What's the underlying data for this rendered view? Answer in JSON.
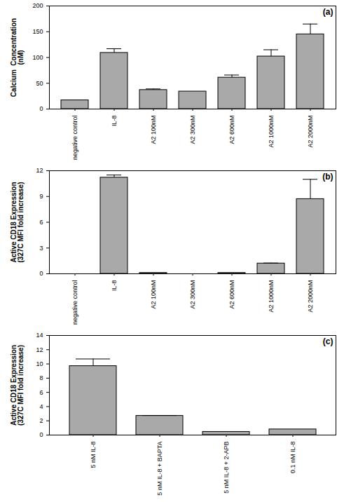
{
  "chart_data": [
    {
      "type": "bar",
      "title": "(a)",
      "y_label": "Calcium  Concentration\n(nM)",
      "categories": [
        "negative control",
        "IL-8",
        "A2 100nM",
        "A2 300nM",
        "A2 600nM",
        "A2 1000nM",
        "A2 2000nM"
      ],
      "values": [
        17,
        109,
        37,
        34,
        61,
        102,
        145
      ],
      "errors": [
        0,
        8,
        2,
        0,
        5,
        13,
        20
      ],
      "color": "#a9a9a9",
      "ylim": [
        0,
        200
      ],
      "yticks": [
        0,
        50,
        100,
        150,
        200
      ]
    },
    {
      "type": "bar",
      "title": "(b)",
      "y_label": "Active CD18 Expression\n(327C MFI fold increase)",
      "categories": [
        "negative control",
        "IL-8",
        "A2 100nM",
        "A2 300nM",
        "A2 600nM",
        "A2 1000nM",
        "A2 2000nM"
      ],
      "values": [
        0,
        11.2,
        0.1,
        0,
        0.1,
        1.2,
        8.7
      ],
      "errors": [
        0,
        0.3,
        0,
        0,
        0,
        0.05,
        2.3
      ],
      "color": "#a9a9a9",
      "ylim": [
        0,
        12
      ],
      "yticks": [
        0,
        3,
        6,
        9,
        12
      ]
    },
    {
      "type": "bar",
      "title": "(c)",
      "y_label": "Active CD18 Expression\n(327C MFI fold increase)",
      "categories": [
        "5 nM IL-8",
        "5 nM IL-8 + BAPTA",
        "5 nM IL-8 + 2-APB",
        "0.1 nM IL-8"
      ],
      "values": [
        9.7,
        2.7,
        0.45,
        0.8
      ],
      "errors": [
        1.0,
        0.05,
        0,
        0
      ],
      "color": "#a9a9a9",
      "ylim": [
        0,
        14
      ],
      "yticks": [
        0,
        2,
        4,
        6,
        8,
        10,
        12,
        14
      ]
    }
  ]
}
